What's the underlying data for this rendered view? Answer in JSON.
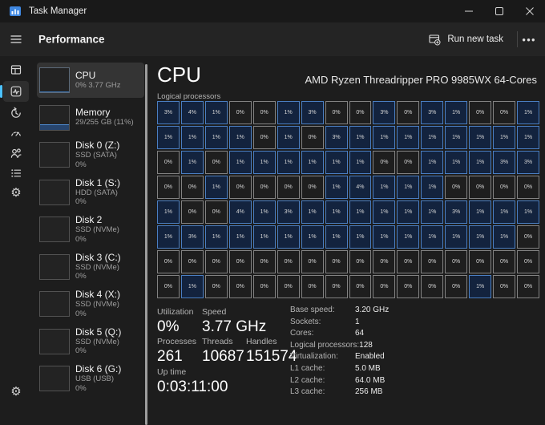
{
  "titlebar": {
    "app_title": "Task Manager"
  },
  "header": {
    "title": "Performance",
    "run_new_task_label": "Run new task",
    "more_label": "●●●"
  },
  "nav_rail": {
    "items": [
      {
        "name": "processes",
        "selected": false
      },
      {
        "name": "performance",
        "selected": true
      },
      {
        "name": "app-history",
        "selected": false
      },
      {
        "name": "startup-apps",
        "selected": false
      },
      {
        "name": "users",
        "selected": false
      },
      {
        "name": "details",
        "selected": false
      },
      {
        "name": "services",
        "selected": false
      }
    ],
    "settings_name": "settings"
  },
  "sidebar": {
    "items": [
      {
        "title": "CPU",
        "lines": [
          "0% 3.77 GHz"
        ],
        "selected": true,
        "thumb": "cpu"
      },
      {
        "title": "Memory",
        "lines": [
          "29/255 GB (11%)"
        ],
        "selected": false,
        "thumb": "memory"
      },
      {
        "title": "Disk 0 (Z:)",
        "lines": [
          "SSD (SATA)",
          "0%"
        ],
        "selected": false,
        "thumb": "disk"
      },
      {
        "title": "Disk 1 (S:)",
        "lines": [
          "HDD (SATA)",
          "0%"
        ],
        "selected": false,
        "thumb": "disk"
      },
      {
        "title": "Disk 2",
        "lines": [
          "SSD (NVMe)",
          "0%"
        ],
        "selected": false,
        "thumb": "disk"
      },
      {
        "title": "Disk 3 (C:)",
        "lines": [
          "SSD (NVMe)",
          "0%"
        ],
        "selected": false,
        "thumb": "disk"
      },
      {
        "title": "Disk 4 (X:)",
        "lines": [
          "SSD (NVMe)",
          "0%"
        ],
        "selected": false,
        "thumb": "disk"
      },
      {
        "title": "Disk 5 (Q:)",
        "lines": [
          "SSD (NVMe)",
          "0%"
        ],
        "selected": false,
        "thumb": "disk"
      },
      {
        "title": "Disk 6 (G:)",
        "lines": [
          "USB (USB)",
          "0%"
        ],
        "selected": false,
        "thumb": "disk"
      }
    ]
  },
  "main": {
    "title": "CPU",
    "subtitle": "AMD Ryzen Threadripper PRO 9985WX 64-Cores",
    "grid_label": "Logical processors",
    "logical_processors": {
      "rows": 8,
      "cols": 16,
      "utilization_pct": [
        [
          3,
          4,
          1,
          0,
          0,
          1,
          3,
          0,
          0,
          3,
          0,
          3,
          1,
          0,
          0,
          1
        ],
        [
          1,
          1,
          1,
          1,
          0,
          1,
          0,
          3,
          1,
          1,
          1,
          1,
          1,
          1,
          1,
          1
        ],
        [
          0,
          1,
          0,
          1,
          1,
          1,
          1,
          1,
          1,
          0,
          0,
          1,
          1,
          1,
          3,
          3
        ],
        [
          0,
          0,
          1,
          0,
          0,
          0,
          0,
          1,
          4,
          1,
          1,
          1,
          0,
          0,
          0,
          0
        ],
        [
          1,
          0,
          0,
          4,
          1,
          3,
          1,
          1,
          1,
          1,
          1,
          1,
          3,
          1,
          1,
          1
        ],
        [
          1,
          3,
          1,
          1,
          1,
          1,
          1,
          1,
          1,
          1,
          1,
          1,
          1,
          1,
          1,
          0
        ],
        [
          0,
          0,
          0,
          0,
          0,
          0,
          0,
          0,
          0,
          0,
          0,
          0,
          0,
          0,
          0,
          0
        ],
        [
          0,
          1,
          0,
          0,
          0,
          0,
          0,
          0,
          0,
          0,
          0,
          0,
          0,
          1,
          0,
          0
        ]
      ]
    },
    "stats": {
      "utilization": {
        "label": "Utilization",
        "value": "0%"
      },
      "speed": {
        "label": "Speed",
        "value": "3.77 GHz"
      },
      "processes": {
        "label": "Processes",
        "value": "261"
      },
      "threads": {
        "label": "Threads",
        "value": "10687"
      },
      "handles": {
        "label": "Handles",
        "value": "151574"
      },
      "up_time": {
        "label": "Up time",
        "value": "0:03:11:00"
      }
    },
    "details": [
      {
        "label": "Base speed:",
        "value": "3.20 GHz"
      },
      {
        "label": "Sockets:",
        "value": "1"
      },
      {
        "label": "Cores:",
        "value": "64"
      },
      {
        "label": "Logical processors:",
        "value": "128"
      },
      {
        "label": "Virtualization:",
        "value": "Enabled"
      },
      {
        "label": "L1 cache:",
        "value": "5.0 MB"
      },
      {
        "label": "L2 cache:",
        "value": "64.0 MB"
      },
      {
        "label": "L3 cache:",
        "value": "256 MB"
      }
    ]
  },
  "colors": {
    "accent": "#4cc2ff",
    "cell_active_fill": "#13233e",
    "cell_active_border": "#4a7ec2",
    "cell_idle_fill": "#1e1e1e",
    "cell_idle_border": "#828282",
    "memory_bar_fill": "#27456e",
    "memory_bar_line": "#4e8ad0"
  }
}
